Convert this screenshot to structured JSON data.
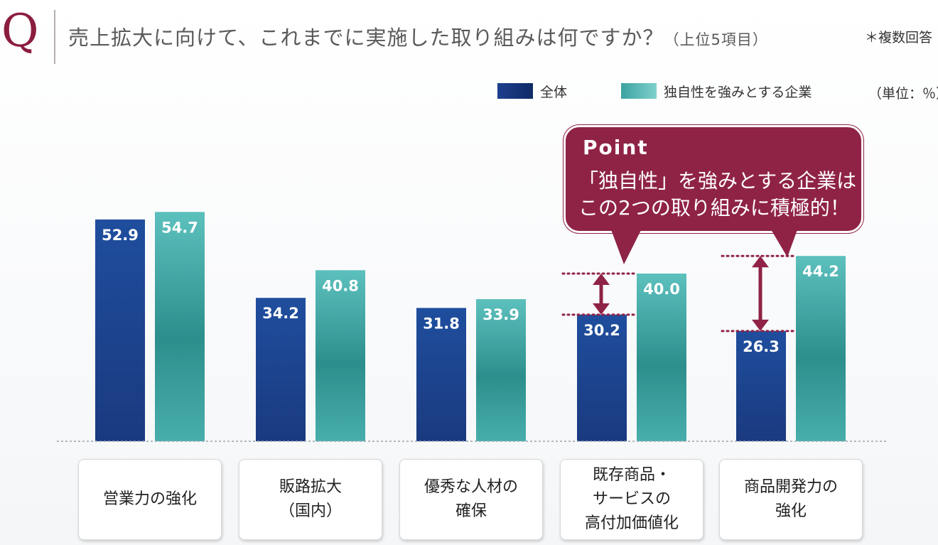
{
  "header": {
    "q_mark": "Q",
    "question": "売上拡大に向けて、これまでに実施した取り組みは何ですか？",
    "question_sub": "（上位5項目）",
    "note": "＊複数回答"
  },
  "legend": {
    "items": [
      {
        "label": "全体",
        "color": "#1d3f8e"
      },
      {
        "label": "独自性を強みとする企業",
        "color": "#3ba3a0"
      }
    ],
    "unit": "（単位：％）"
  },
  "callout": {
    "title": "Point",
    "line1": "「独自性」を強みとする企業は",
    "line2": "この2つの取り組みに積極的！",
    "color": "#8f2346"
  },
  "chart_data": {
    "type": "bar",
    "categories": [
      "営業力の強化",
      "販路拡大\n（国内）",
      "優秀な人材の\n確保",
      "既存商品・\nサービスの\n高付加価値化",
      "商品開発力の\n強化"
    ],
    "series": [
      {
        "name": "全体",
        "values": [
          52.9,
          34.2,
          31.8,
          30.2,
          26.3
        ],
        "color": "#1d3f8e"
      },
      {
        "name": "独自性を強みとする企業",
        "values": [
          54.7,
          40.8,
          33.9,
          40.0,
          44.2
        ],
        "color": "#3ba3a0"
      }
    ],
    "value_labels": [
      [
        "52.9",
        "34.2",
        "31.8",
        "30.2",
        "26.3"
      ],
      [
        "54.7",
        "40.8",
        "33.9",
        "40.0",
        "44.2"
      ]
    ],
    "title": "売上拡大に向けて、これまでに実施した取り組みは何ですか？",
    "xlabel": "",
    "ylabel": "",
    "unit": "%",
    "grid": false,
    "legend_position": "top-right",
    "highlight_categories": [
      3,
      4
    ],
    "highlight_color": "#8f2346"
  }
}
